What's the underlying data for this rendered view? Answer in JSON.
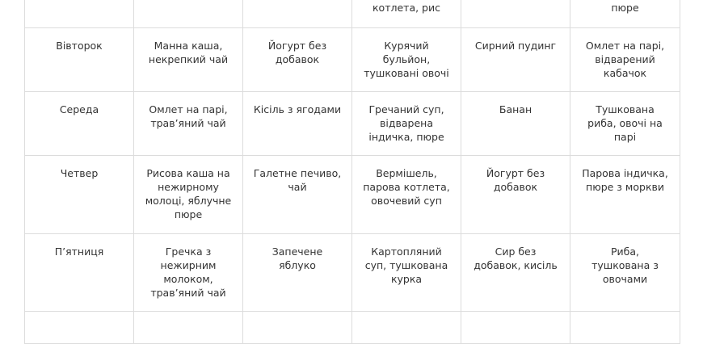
{
  "table": {
    "rows": [
      [
        null,
        null,
        null,
        "котлета, рис",
        null,
        "пюре"
      ],
      [
        "Вівторок",
        "Манна каша, некрепкий чай",
        "Йогурт без добавок",
        "Курячий бульйон, тушковані овочі",
        "Сирний пудинг",
        "Омлет на парі, відварений кабачок"
      ],
      [
        "Середа",
        "Омлет на парі, трав’яний чай",
        "Кісіль з ягодами",
        "Гречаний суп, відварена індичка, пюре",
        "Банан",
        "Тушкована риба, овочі на парі"
      ],
      [
        "Четвер",
        "Рисова каша на нежирному молоці, яблучне пюре",
        "Галетне печиво, чай",
        "Вермішель, парова котлета, овочевий суп",
        "Йогурт без добавок",
        "Парова індичка, пюре з моркви"
      ],
      [
        "П’ятниця",
        "Гречка з нежирним молоком, трав’яний чай",
        "Запечене яблуко",
        "Картопляний суп, тушкована курка",
        "Сир без добавок, кисіль",
        "Риба, тушкована з овочами"
      ]
    ]
  }
}
